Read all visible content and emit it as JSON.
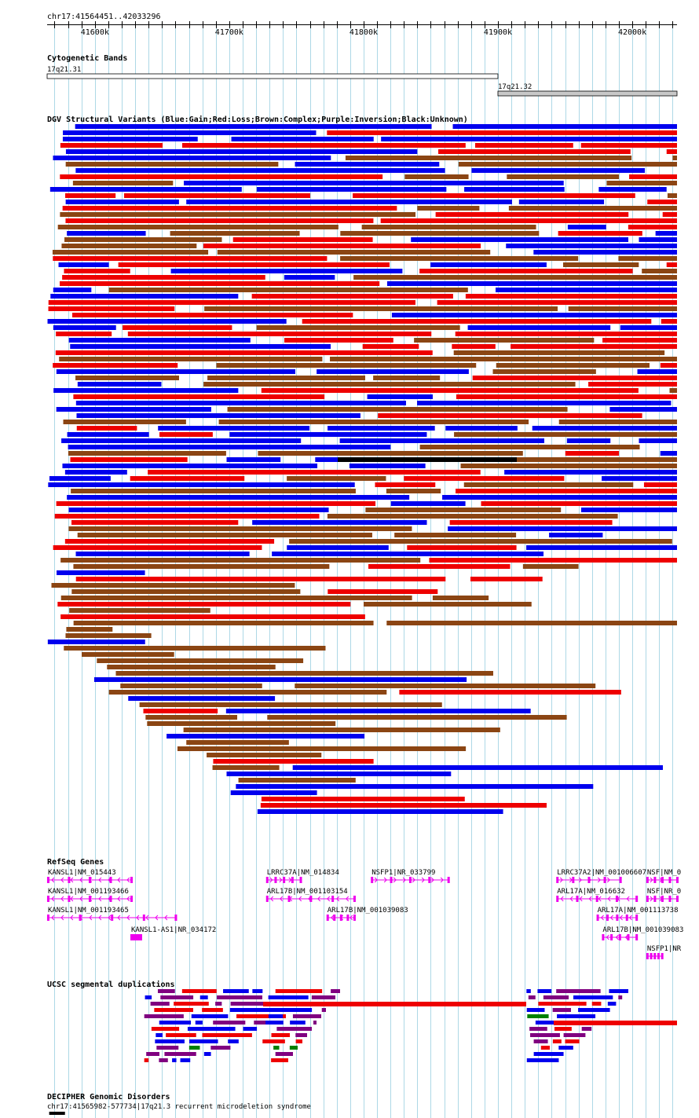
{
  "view": {
    "location": "chr17:41564451..42033296",
    "range_start": 41564451,
    "range_end": 42033296
  },
  "ruler": {
    "ticks_k": [
      "41600k",
      "41700k",
      "41800k",
      "41900k",
      "42000k"
    ],
    "tick_values": [
      41600000,
      41700000,
      41800000,
      41900000,
      42000000
    ]
  },
  "colors": {
    "gain": "#0000ee",
    "loss": "#ee0000",
    "complex": "#8b4513",
    "inversion": "#800080",
    "unknown": "#000000",
    "gene": "#ee00ee",
    "grid": "#add8e6",
    "segdup_green": "#008000"
  },
  "tracks": {
    "cytobands": {
      "title": "Cytogenetic Bands",
      "bands": [
        {
          "name": "17q21.31",
          "start": 41564451,
          "end": 41900000,
          "fill": "#ffffff"
        },
        {
          "name": "17q21.32",
          "start": 41900000,
          "end": 42033296,
          "fill": "#c8c8c8"
        }
      ]
    },
    "dgv": {
      "title": "DGV Structural Variants (Blue:Gain;Red:Loss;Brown:Complex;Purple:Inversion;Black:Unknown)"
    },
    "refseq": {
      "title": "RefSeq Genes",
      "genes": [
        {
          "label": "KANSL1|NM_015443",
          "start": 41565000,
          "end": 41627000,
          "row": 0,
          "dir": "left"
        },
        {
          "label": "LRRC37A|NM_014834",
          "start": 41728000,
          "end": 41753000,
          "row": 0,
          "dir": "right"
        },
        {
          "label": "NSFP1|NR_033799",
          "start": 41806000,
          "end": 41863000,
          "row": 0,
          "dir": "right"
        },
        {
          "label": "LRRC37A2|NM_001006607",
          "start": 41944000,
          "end": 41991000,
          "row": 0,
          "dir": "right"
        },
        {
          "label": "NSF|NM_0",
          "start": 42011000,
          "end": 42033296,
          "row": 0,
          "dir": "right"
        },
        {
          "label": "KANSL1|NM_001193466",
          "start": 41565000,
          "end": 41627000,
          "row": 1,
          "dir": "left"
        },
        {
          "label": "ARL17B|NM_001103154",
          "start": 41728000,
          "end": 41793000,
          "row": 1,
          "dir": "left"
        },
        {
          "label": "ARL17A|NM_016632",
          "start": 41944000,
          "end": 42003000,
          "row": 1,
          "dir": "left"
        },
        {
          "label": "NSF|NR_0",
          "start": 42011000,
          "end": 42033296,
          "row": 1,
          "dir": "right"
        },
        {
          "label": "KANSL1|NM_001193465",
          "start": 41565000,
          "end": 41660000,
          "row": 2,
          "dir": "left"
        },
        {
          "label": "ARL17B|NM_001039083",
          "start": 41773000,
          "end": 41793000,
          "row": 2,
          "dir": "left"
        },
        {
          "label": "ARL17A|NM_001113738",
          "start": 41974000,
          "end": 42003000,
          "row": 2,
          "dir": "left"
        },
        {
          "label": "KANSL1-AS1|NR_034172",
          "start": 41627000,
          "end": 41634000,
          "row": 3,
          "dir": "right"
        },
        {
          "label": "ARL17B|NM_001039083",
          "start": 41978000,
          "end": 42003000,
          "row": 3,
          "dir": "left"
        },
        {
          "label": "NSFP1|NR",
          "start": 42011000,
          "end": 42022000,
          "row": 4,
          "dir": "right"
        }
      ]
    },
    "segdup": {
      "title": "UCSC segmental duplications"
    },
    "decipher": {
      "title": "DECIPHER Genomic Disorders",
      "feature_label": "chr17:41565982-577734|17q21.3 recurrent microdeletion syndrome",
      "start": 41565982,
      "end": 41577734
    }
  }
}
